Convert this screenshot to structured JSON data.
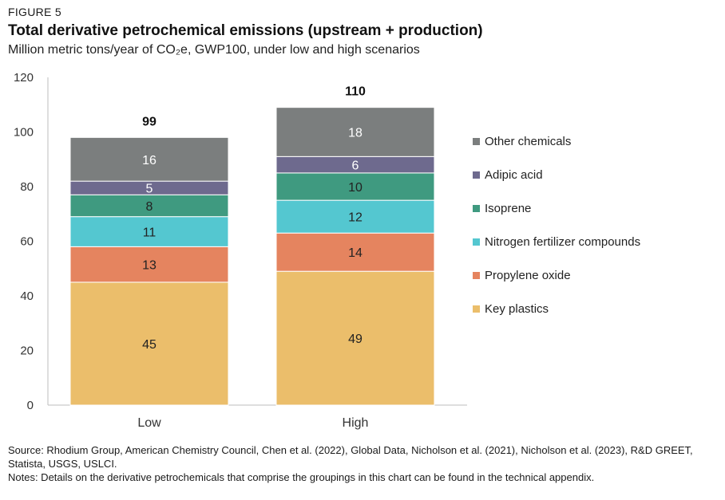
{
  "figure_label": "FIGURE 5",
  "colors": {
    "Key plastics": "#EBBE6B",
    "Propylene oxide": "#E5845F",
    "Nitrogen fertilizer compounds": "#54C7D0",
    "Isoprene": "#3F9A80",
    "Adipic acid": "#6E6A8E",
    "Other chemicals": "#7B7E7E"
  },
  "chart_data": {
    "type": "bar",
    "stacked": true,
    "title": "Total derivative petrochemical emissions (upstream + production)",
    "subtitle": "Million metric tons/year of CO₂e, GWP100, under low and high scenarios",
    "categories": [
      "Low",
      "High"
    ],
    "series": [
      {
        "name": "Key plastics",
        "values": [
          45,
          49
        ]
      },
      {
        "name": "Propylene oxide",
        "values": [
          13,
          14
        ]
      },
      {
        "name": "Nitrogen fertilizer compounds",
        "values": [
          11,
          12
        ]
      },
      {
        "name": "Isoprene",
        "values": [
          8,
          10
        ]
      },
      {
        "name": "Adipic acid",
        "values": [
          5,
          6
        ]
      },
      {
        "name": "Other chemicals",
        "values": [
          16,
          18
        ]
      }
    ],
    "totals": [
      99,
      110
    ],
    "ylim": [
      0,
      120
    ],
    "yticks": [
      0,
      20,
      40,
      60,
      80,
      100,
      120
    ],
    "grid": false,
    "legend": "right"
  },
  "legend_order": [
    "Other chemicals",
    "Adipic acid",
    "Isoprene",
    "Nitrogen fertilizer compounds",
    "Propylene oxide",
    "Key plastics"
  ],
  "footer": {
    "source": "Source: Rhodium Group, American Chemistry Council, Chen et al. (2022), Global Data, Nicholson et al. (2021), Nicholson et al. (2023), R&D GREET, Statista, USGS, USLCI.",
    "notes": "Notes: Details on the derivative petrochemicals that comprise the groupings in this chart can be found in the technical appendix."
  }
}
